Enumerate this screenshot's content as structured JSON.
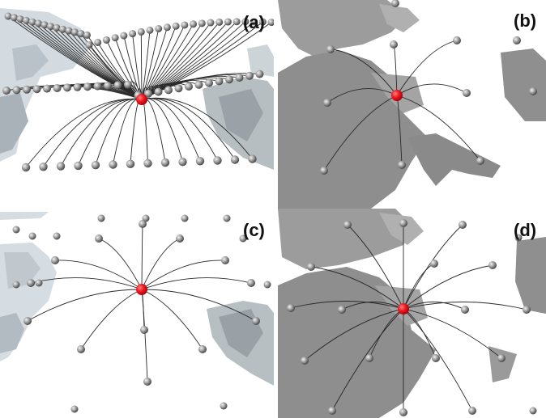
{
  "panels": [
    {
      "id": "a",
      "label": "(a)"
    },
    {
      "id": "b",
      "label": "(b)"
    },
    {
      "id": "c",
      "label": "(c)"
    },
    {
      "id": "d",
      "label": "(d)"
    }
  ],
  "colors": {
    "center_node": "#e8141c",
    "neighbor_node": "#8a8a8a",
    "edge": "#2a2a2a",
    "terrain_light": "#cfd6da",
    "terrain_dark": "#8f8f8f",
    "background": "#ffffff"
  }
}
